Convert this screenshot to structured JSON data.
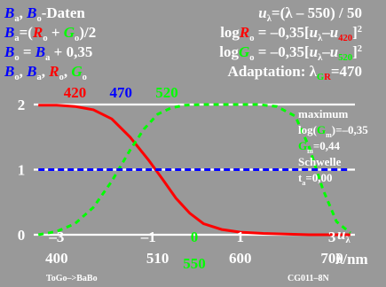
{
  "header": {
    "left": [
      [
        {
          "t": "B",
          "c": "blue",
          "i": true
        },
        {
          "t": "a",
          "c": "white",
          "sub": true
        },
        {
          "t": ", ",
          "c": "white"
        },
        {
          "t": "B",
          "c": "blue",
          "i": true
        },
        {
          "t": "o",
          "c": "white",
          "sub": true
        },
        {
          "t": "-Daten",
          "c": "white"
        }
      ],
      [
        {
          "t": "B",
          "c": "blue",
          "i": true
        },
        {
          "t": "a",
          "c": "white",
          "sub": true
        },
        {
          "t": "=(",
          "c": "white"
        },
        {
          "t": "R",
          "c": "red",
          "i": true
        },
        {
          "t": "o",
          "c": "white",
          "sub": true
        },
        {
          "t": " + ",
          "c": "white"
        },
        {
          "t": "G",
          "c": "green",
          "i": true
        },
        {
          "t": "o",
          "c": "white",
          "sub": true
        },
        {
          "t": ")/2",
          "c": "white"
        }
      ],
      [
        {
          "t": "B",
          "c": "blue",
          "i": true
        },
        {
          "t": "o",
          "c": "white",
          "sub": true
        },
        {
          "t": " = ",
          "c": "white"
        },
        {
          "t": "B",
          "c": "blue",
          "i": true
        },
        {
          "t": "a",
          "c": "white",
          "sub": true
        },
        {
          "t": " + 0,35",
          "c": "white"
        }
      ],
      [
        {
          "t": "B",
          "c": "blue",
          "i": true
        },
        {
          "t": "o",
          "c": "white",
          "sub": true
        },
        {
          "t": ", ",
          "c": "white"
        },
        {
          "t": "B",
          "c": "blue",
          "i": true
        },
        {
          "t": "a",
          "c": "white",
          "sub": true
        },
        {
          "t": ", ",
          "c": "white"
        },
        {
          "t": "R",
          "c": "red",
          "i": true
        },
        {
          "t": "o",
          "c": "white",
          "sub": true
        },
        {
          "t": ", ",
          "c": "white"
        },
        {
          "t": "G",
          "c": "green",
          "i": true
        },
        {
          "t": "o",
          "c": "white",
          "sub": true
        }
      ]
    ],
    "right": [
      [
        {
          "t": "u",
          "c": "white",
          "i": true
        },
        {
          "t": "λ",
          "c": "white",
          "sub": true
        },
        {
          "t": "=(λ – 550) / 50",
          "c": "white"
        }
      ],
      [
        {
          "t": "log",
          "c": "white"
        },
        {
          "t": "R",
          "c": "red",
          "i": true
        },
        {
          "t": "o",
          "c": "white",
          "sub": true
        },
        {
          "t": " = –0,35[",
          "c": "white"
        },
        {
          "t": "u",
          "c": "white",
          "i": true
        },
        {
          "t": "λ",
          "c": "white",
          "sub": true
        },
        {
          "t": "–",
          "c": "white"
        },
        {
          "t": "u",
          "c": "white",
          "i": true
        },
        {
          "t": "420",
          "c": "red",
          "sub": true
        },
        {
          "t": "]",
          "c": "white"
        },
        {
          "t": "2",
          "c": "white",
          "sup": true
        }
      ],
      [
        {
          "t": "log",
          "c": "white"
        },
        {
          "t": "G",
          "c": "green",
          "i": true
        },
        {
          "t": "o",
          "c": "white",
          "sub": true
        },
        {
          "t": " = –0,35[",
          "c": "white"
        },
        {
          "t": "u",
          "c": "white",
          "i": true
        },
        {
          "t": "λ",
          "c": "white",
          "sub": true
        },
        {
          "t": "–",
          "c": "white"
        },
        {
          "t": "u",
          "c": "white",
          "i": true
        },
        {
          "t": "520",
          "c": "green",
          "sub": true
        },
        {
          "t": "]",
          "c": "white"
        },
        {
          "t": "2",
          "c": "white",
          "sup": true
        }
      ],
      [
        {
          "t": "Adaptation: λ",
          "c": "white"
        },
        {
          "t": "G",
          "c": "green",
          "sub": true
        },
        {
          "t": "R",
          "c": "red",
          "sub": true
        },
        {
          "t": "=470",
          "c": "white"
        }
      ]
    ],
    "wavelengths": [
      {
        "t": "420",
        "c": "red"
      },
      {
        "t": "470",
        "c": "blue"
      },
      {
        "t": "520",
        "c": "green"
      }
    ]
  },
  "side_note": [
    [
      {
        "t": "maximum",
        "c": "white"
      }
    ],
    [
      {
        "t": "log(",
        "c": "white"
      },
      {
        "t": "G",
        "c": "green"
      },
      {
        "t": "m",
        "c": "white",
        "sub": true
      },
      {
        "t": ")=–0,35",
        "c": "white"
      }
    ],
    [
      {
        "t": "G",
        "c": "green"
      },
      {
        "t": "m",
        "c": "white",
        "sub": true
      },
      {
        "t": "=0,44",
        "c": "white"
      }
    ],
    [
      {
        "t": "Schwelle",
        "c": "white"
      }
    ],
    [
      {
        "t": "t",
        "c": "white"
      },
      {
        "t": "a",
        "c": "white",
        "sub": true
      },
      {
        "t": "=0,00",
        "c": "white"
      }
    ]
  ],
  "footer": {
    "left": "ToGo–>BaBo",
    "right": "CG011–8N",
    "xlabel_unit": "λ/nm",
    "x_ticks": [
      "400",
      "510",
      "550",
      "600",
      "700"
    ]
  },
  "colors": {
    "background": "#999999",
    "red": "#ff0000",
    "green": "#00ff00",
    "blue": "#0000ff",
    "white": "#ffffff",
    "highlight_550": "#00ff00"
  },
  "chart_data": {
    "type": "line",
    "xlabel": "u_λ",
    "xlim": [
      -3.5,
      3.5
    ],
    "ylim": [
      0,
      2
    ],
    "y_ticks": [
      0,
      1,
      2
    ],
    "u_ticks": [
      "–3",
      "–1",
      "0",
      "1",
      "3"
    ],
    "x_ticks_nm": [
      400,
      510,
      550,
      600,
      700
    ],
    "grid": "horizontal-lines",
    "series": [
      {
        "color": "red",
        "style": "solid",
        "x": [
          -3.4,
          -3.0,
          -2.6,
          -2.2,
          -1.8,
          -1.4,
          -1.0,
          -0.7,
          -0.4,
          -0.1,
          0.2,
          0.6,
          1.0,
          1.5,
          2.0,
          2.5,
          3.0,
          3.4
        ],
        "y": [
          1.99,
          1.99,
          1.97,
          1.92,
          1.78,
          1.5,
          1.15,
          0.86,
          0.56,
          0.33,
          0.17,
          0.08,
          0.04,
          0.02,
          0.01,
          0.0,
          0.0,
          0.0
        ]
      },
      {
        "color": "green",
        "style": "dashed",
        "x": [
          -3.4,
          -3.0,
          -2.6,
          -2.2,
          -1.8,
          -1.4,
          -1.1,
          -0.8,
          -0.5,
          -0.2,
          0.2,
          0.8,
          1.4,
          1.8,
          2.2,
          2.5,
          2.8,
          3.1,
          3.4
        ],
        "y": [
          0.0,
          0.05,
          0.17,
          0.42,
          0.82,
          1.3,
          1.62,
          1.85,
          1.95,
          1.99,
          2.0,
          2.0,
          2.0,
          1.97,
          1.82,
          1.35,
          0.7,
          0.2,
          0.03
        ]
      },
      {
        "color": "blue",
        "style": "dashed",
        "x": [
          -3.4,
          3.4
        ],
        "y": [
          1.0,
          1.0
        ]
      }
    ],
    "annotations": [
      {
        "text": "420",
        "x": -2.6,
        "color": "red"
      },
      {
        "text": "470",
        "x": -1.6,
        "color": "blue"
      },
      {
        "text": "520",
        "x": -0.6,
        "color": "green"
      }
    ]
  }
}
